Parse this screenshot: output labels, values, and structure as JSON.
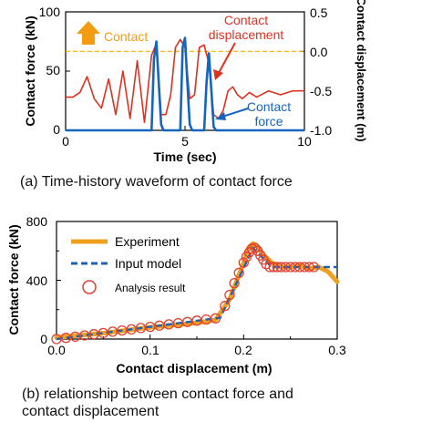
{
  "chart_data": [
    {
      "type": "line",
      "caption": "(a) Time-history waveform of contact force",
      "xlabel": "Time (sec)",
      "ylabel_left": "Contact force (kN)",
      "ylabel_right": "Contact displacement (m)",
      "xlim": [
        0,
        10
      ],
      "ylim_left": [
        0,
        100
      ],
      "ylim_right": [
        -1.0,
        0.5
      ],
      "x_ticks": [
        "0",
        "5",
        "10"
      ],
      "y_ticks_left": [
        "0",
        "50",
        "100"
      ],
      "y_ticks_right": [
        "0.5",
        "0.0",
        "-0.5",
        "-1.0"
      ],
      "grid": false,
      "reference_line": {
        "axis": "right",
        "value": 0.0,
        "style": "dashed",
        "color": "#f0b000"
      },
      "annotations": {
        "contact": "Contact",
        "displacement_line1": "Contact",
        "displacement_line2": "displacement",
        "force_line1": "Contact",
        "force_line2": "force"
      },
      "series": [
        {
          "name": "Contact displacement",
          "axis": "right",
          "color": "#e0301e",
          "x": [
            0,
            0.3,
            0.6,
            0.9,
            1.2,
            1.5,
            1.8,
            2.1,
            2.4,
            2.7,
            3.0,
            3.3,
            3.6,
            3.8,
            4.0,
            4.2,
            4.4,
            4.6,
            4.8,
            5.0,
            5.2,
            5.4,
            5.6,
            5.8,
            6.0,
            6.2,
            6.4,
            6.6,
            6.8,
            7.0,
            7.2,
            7.4,
            7.7,
            8.0,
            8.5,
            9.0,
            9.5,
            10.0
          ],
          "y": [
            -0.58,
            -0.58,
            -0.52,
            -0.32,
            -0.6,
            -0.72,
            -0.35,
            -0.8,
            -0.25,
            -0.85,
            -0.12,
            -0.9,
            -0.05,
            0.1,
            -0.8,
            -0.8,
            -0.55,
            0.05,
            0.15,
            0.05,
            -0.6,
            -0.55,
            0.05,
            0.08,
            -0.15,
            -0.8,
            -0.85,
            -0.75,
            -0.5,
            -0.45,
            -0.55,
            -0.6,
            -0.52,
            -0.58,
            -0.5,
            -0.55,
            -0.5,
            -0.5
          ]
        },
        {
          "name": "Contact force",
          "axis": "left",
          "color": "#1565c0",
          "x": [
            0,
            3.6,
            3.7,
            3.8,
            3.9,
            4.0,
            4.1,
            4.8,
            4.9,
            5.0,
            5.1,
            5.2,
            5.3,
            5.8,
            5.9,
            6.0,
            6.1,
            6.2,
            6.3,
            10.0
          ],
          "y": [
            0,
            0,
            60,
            75,
            40,
            5,
            0,
            0,
            70,
            78,
            40,
            5,
            0,
            0,
            40,
            65,
            35,
            3,
            0,
            0
          ]
        }
      ]
    },
    {
      "type": "scatter",
      "caption_line1": "(b) relationship between contact force and",
      "caption_line2": "contact displacement",
      "xlabel": "Contact displacement (m)",
      "ylabel": "Contact force (kN)",
      "xlim": [
        0,
        0.3
      ],
      "ylim": [
        0,
        800
      ],
      "x_ticks": [
        "0.0",
        "0.1",
        "0.2",
        "0.3"
      ],
      "y_ticks": [
        "0",
        "400",
        "800"
      ],
      "grid": false,
      "legend_position": "top-left",
      "series": [
        {
          "name": "Experiment",
          "style": "line",
          "color": "#f0a020",
          "x": [
            0.0,
            0.05,
            0.1,
            0.15,
            0.17,
            0.185,
            0.2,
            0.205,
            0.21,
            0.215,
            0.22,
            0.23,
            0.24,
            0.25,
            0.26,
            0.27,
            0.28,
            0.29,
            0.3
          ],
          "y": [
            10,
            40,
            80,
            110,
            130,
            270,
            520,
            620,
            650,
            630,
            580,
            520,
            490,
            490,
            500,
            480,
            490,
            460,
            390
          ]
        },
        {
          "name": "Input model",
          "style": "dashed",
          "color": "#2060b0",
          "x": [
            0.0,
            0.175,
            0.21,
            0.23,
            0.3
          ],
          "y": [
            0,
            145,
            620,
            490,
            490
          ]
        },
        {
          "name": "Analysis result",
          "style": "markers",
          "color": "#e04030",
          "x": [
            0.0,
            0.01,
            0.02,
            0.03,
            0.04,
            0.05,
            0.06,
            0.07,
            0.08,
            0.09,
            0.1,
            0.11,
            0.12,
            0.13,
            0.14,
            0.15,
            0.16,
            0.17,
            0.18,
            0.185,
            0.19,
            0.195,
            0.2,
            0.203,
            0.206,
            0.209,
            0.212,
            0.215,
            0.218,
            0.221,
            0.224,
            0.228,
            0.232,
            0.236,
            0.24,
            0.245,
            0.25,
            0.255,
            0.26,
            0.265,
            0.27,
            0.275
          ],
          "y": [
            0,
            8,
            16,
            25,
            33,
            41,
            50,
            58,
            66,
            75,
            83,
            91,
            100,
            108,
            116,
            125,
            133,
            141,
            225,
            300,
            380,
            450,
            520,
            560,
            590,
            615,
            620,
            600,
            570,
            540,
            510,
            490,
            490,
            490,
            490,
            490,
            490,
            490,
            490,
            490,
            490,
            490
          ]
        }
      ]
    }
  ]
}
